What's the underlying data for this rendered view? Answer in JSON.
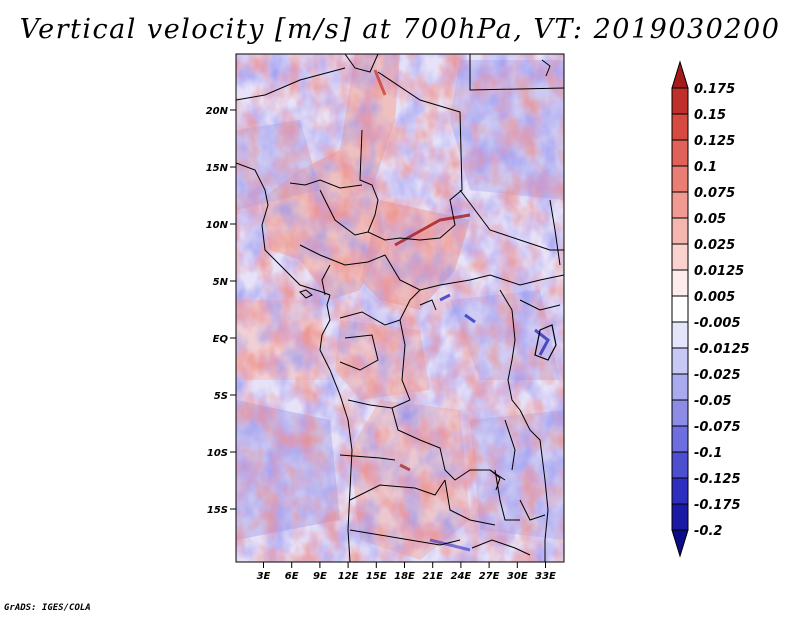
{
  "title": "Vertical velocity [m/s] at 700hPa, VT: 2019030200",
  "footer": "GrADS: IGES/COLA",
  "axes": {
    "lat_ticks": [
      "20N",
      "15N",
      "10N",
      "5N",
      "EQ",
      "5S",
      "10S",
      "15S"
    ],
    "lon_ticks": [
      "3E",
      "6E",
      "9E",
      "12E",
      "15E",
      "18E",
      "21E",
      "24E",
      "27E",
      "30E",
      "33E"
    ]
  },
  "colorbar": {
    "levels": [
      "0.175",
      "0.15",
      "0.125",
      "0.1",
      "0.075",
      "0.05",
      "0.025",
      "0.0125",
      "0.005",
      "-0.005",
      "-0.0125",
      "-0.025",
      "-0.05",
      "-0.075",
      "-0.1",
      "-0.125",
      "-0.175",
      "-0.2"
    ],
    "colors": [
      "#a51a1a",
      "#c0302a",
      "#d64a40",
      "#e06258",
      "#e87e74",
      "#f09a92",
      "#f6b6b0",
      "#fad2ce",
      "#fdeceb",
      "#ffffff",
      "#e4e4fb",
      "#c8c8f4",
      "#aaaaee",
      "#8c8ce6",
      "#6e6ede",
      "#4e4ed0",
      "#2f2fbf",
      "#1a1aa4",
      "#0c0c8a"
    ]
  }
}
